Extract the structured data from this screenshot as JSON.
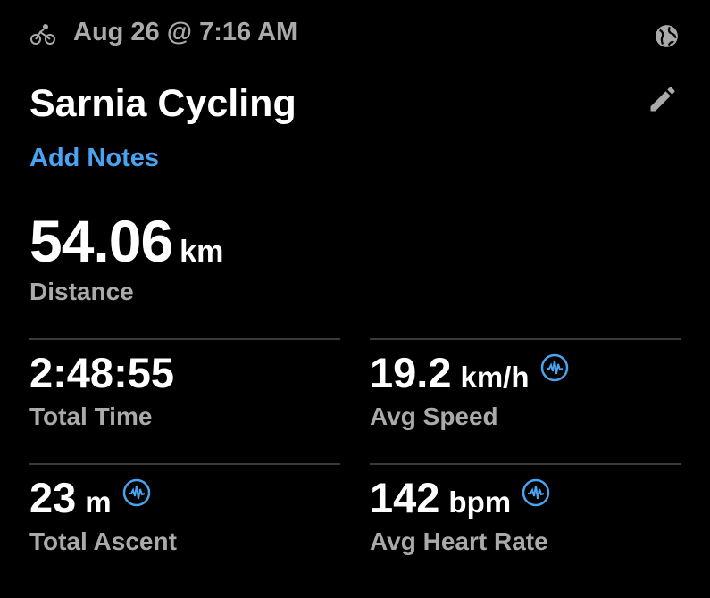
{
  "header": {
    "activity_icon": "bicycle-icon",
    "date": "Aug 26 @ 7:16 AM",
    "privacy_icon": "globe-icon",
    "edit_icon": "pencil-icon"
  },
  "title": "Sarnia Cycling",
  "add_notes": "Add Notes",
  "distance": {
    "value": "54.06",
    "unit": "km",
    "label": "Distance"
  },
  "stats": [
    {
      "value": "2:48:55",
      "unit": "",
      "label": "Total Time",
      "chart_icon": false
    },
    {
      "value": "19.2",
      "unit": "km/h",
      "label": "Avg Speed",
      "chart_icon": true
    },
    {
      "value": "23",
      "unit": "m",
      "label": "Total Ascent",
      "chart_icon": true
    },
    {
      "value": "142",
      "unit": "bpm",
      "label": "Avg Heart Rate",
      "chart_icon": true
    }
  ],
  "colors": {
    "background": "#000000",
    "accent": "#4aa3f0",
    "label": "#aaaaaa"
  }
}
